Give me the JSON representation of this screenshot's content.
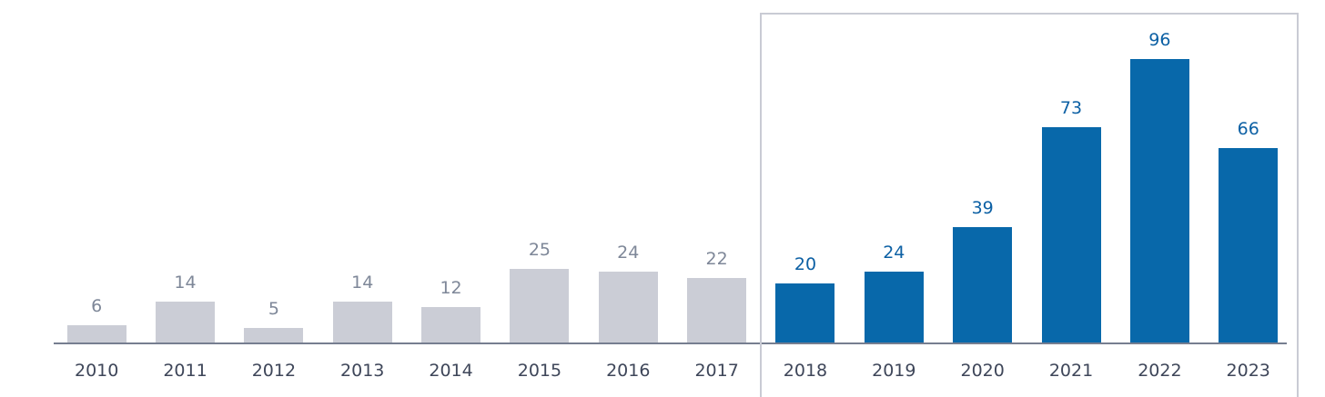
{
  "chart_data": {
    "type": "bar",
    "categories": [
      "2010",
      "2011",
      "2012",
      "2013",
      "2014",
      "2015",
      "2016",
      "2017",
      "2018",
      "2019",
      "2020",
      "2021",
      "2022",
      "2023"
    ],
    "values": [
      6,
      14,
      5,
      14,
      12,
      25,
      24,
      22,
      20,
      24,
      39,
      73,
      96,
      66
    ],
    "groups": [
      "gray",
      "gray",
      "gray",
      "gray",
      "gray",
      "gray",
      "gray",
      "gray",
      "blue",
      "blue",
      "blue",
      "blue",
      "blue",
      "blue"
    ],
    "group_styles": {
      "gray": {
        "bar_color": "#cbcdd6",
        "label_color": "#7e8798"
      },
      "blue": {
        "bar_color": "#0868aa",
        "label_color": "#0c60a4"
      }
    },
    "highlight_box": {
      "from_category": "2018",
      "to_category": "2023",
      "border_color": "#c9cbd4"
    },
    "axis": {
      "line_color": "#767e90",
      "tick_label_color": "#3e4659"
    },
    "ylim": [
      0,
      112
    ],
    "grid": false,
    "legend": false,
    "background": "#ffffff"
  }
}
